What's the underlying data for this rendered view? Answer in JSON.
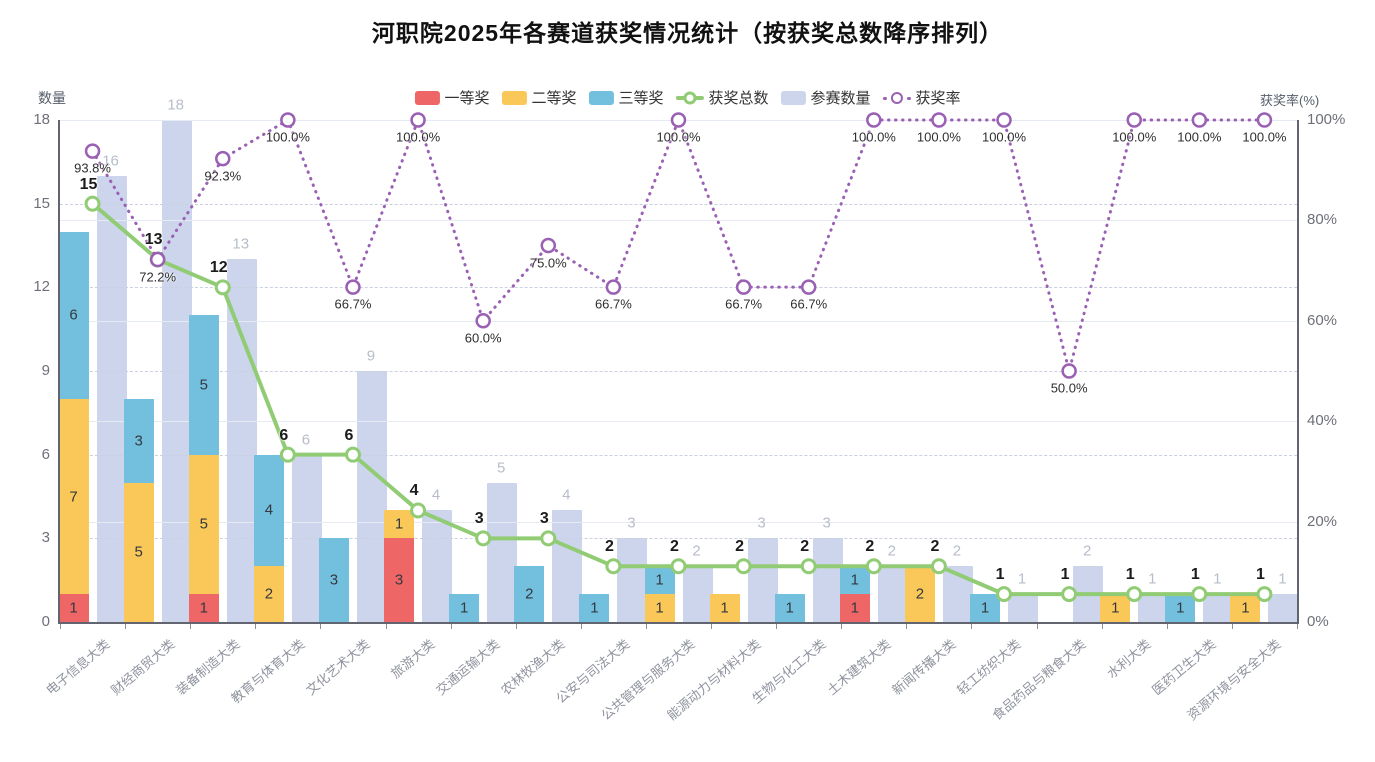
{
  "page": {
    "title": "河职院2025年各赛道获奖情况统计（按获奖总数降序排列）"
  },
  "chart_data": {
    "type": "bar",
    "subtype": "stacked-bar + bar + dual-axis lines",
    "title": "河职院2025年各赛道获奖情况统计（按获奖总数降序排列）",
    "legend_position": "top-center",
    "grid": true,
    "categories": [
      "电子信息大类",
      "财经商贸大类",
      "装备制造大类",
      "教育与体育大类",
      "文化艺术大类",
      "旅游大类",
      "交通运输大类",
      "农林牧渔大类",
      "公安与司法大类",
      "公共管理与服务大类",
      "能源动力与材料大类",
      "生物与化工大类",
      "土木建筑大类",
      "新闻传播大类",
      "轻工纺织大类",
      "食品药品与粮食大类",
      "水利大类",
      "医药卫生大类",
      "资源环境与安全大类"
    ],
    "series": [
      {
        "name": "一等奖",
        "type": "bar",
        "stack": "prize",
        "axis": "left",
        "color": "#ee6666",
        "values": [
          1,
          0,
          1,
          0,
          0,
          3,
          0,
          0,
          0,
          0,
          0,
          0,
          1,
          0,
          0,
          0,
          0,
          0,
          0
        ]
      },
      {
        "name": "二等奖",
        "type": "bar",
        "stack": "prize",
        "axis": "left",
        "color": "#fac858",
        "values": [
          7,
          5,
          5,
          2,
          0,
          1,
          0,
          0,
          0,
          1,
          1,
          0,
          0,
          2,
          0,
          0,
          1,
          0,
          1
        ]
      },
      {
        "name": "三等奖",
        "type": "bar",
        "stack": "prize",
        "axis": "left",
        "color": "#73c0de",
        "values": [
          6,
          3,
          5,
          4,
          3,
          0,
          1,
          2,
          1,
          1,
          0,
          1,
          1,
          0,
          1,
          0,
          0,
          1,
          0
        ]
      },
      {
        "name": "获奖总数",
        "type": "line",
        "axis": "left",
        "color": "#91cc75",
        "values": [
          15,
          13,
          12,
          6,
          6,
          4,
          3,
          3,
          2,
          2,
          2,
          2,
          2,
          2,
          1,
          1,
          1,
          1,
          1
        ]
      },
      {
        "name": "参赛数量",
        "type": "bar",
        "axis": "left",
        "color": "#ccd5ec",
        "values": [
          16,
          18,
          13,
          6,
          9,
          4,
          5,
          4,
          3,
          2,
          3,
          3,
          2,
          2,
          1,
          2,
          1,
          1,
          1
        ]
      },
      {
        "name": "获奖率",
        "type": "line",
        "style": "dotted",
        "axis": "right",
        "color": "#9a60b4",
        "values": [
          93.8,
          72.2,
          92.3,
          100.0,
          66.7,
          100.0,
          60.0,
          75.0,
          66.7,
          100.0,
          66.7,
          66.7,
          100.0,
          100.0,
          100.0,
          50.0,
          100.0,
          100.0,
          100.0
        ],
        "value_labels": [
          "93.8%",
          "72.2%",
          "92.3%",
          "100.0%",
          "66.7%",
          "100.0%",
          "60.0%",
          "75.0%",
          "66.7%",
          "100.0%",
          "66.7%",
          "66.7%",
          "100.0%",
          "100.0%",
          "100.0%",
          "50.0%",
          "100.0%",
          "100.0%",
          "100.0%"
        ]
      }
    ],
    "axes": {
      "left": {
        "title": "数量",
        "ticks": [
          0,
          3,
          6,
          9,
          12,
          15,
          18
        ],
        "max": 18
      },
      "right": {
        "title": "获奖率(%)",
        "ticks": [
          "0%",
          "20%",
          "40%",
          "60%",
          "80%",
          "100%"
        ],
        "max": 100,
        "tick_values": [
          0,
          20,
          40,
          60,
          80,
          100
        ]
      }
    }
  }
}
